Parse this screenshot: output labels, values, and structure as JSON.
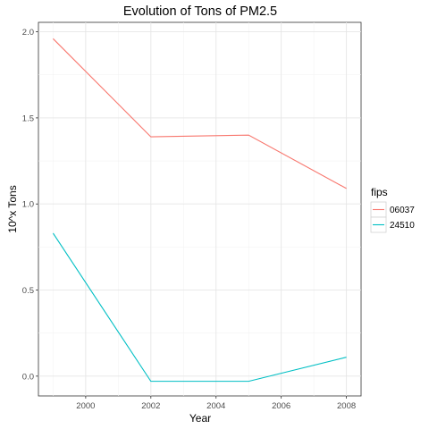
{
  "chart_data": {
    "type": "line",
    "title": "Evolution of Tons of PM2.5",
    "xlabel": "Year",
    "ylabel": "10^x Tons",
    "xlim": [
      1998.55,
      2008.45
    ],
    "ylim": [
      -0.115,
      2.055
    ],
    "x_ticks": [
      2000,
      2002,
      2004,
      2006,
      2008
    ],
    "x_tick_labels": [
      "2000",
      "2002",
      "2004",
      "2006",
      "2008"
    ],
    "y_ticks": [
      0.0,
      0.5,
      1.0,
      1.5,
      2.0
    ],
    "y_tick_labels": [
      "0.0",
      "0.5",
      "1.0",
      "1.5",
      "2.0"
    ],
    "grid": true,
    "legend": {
      "title": "fips",
      "position": "right"
    },
    "series": [
      {
        "name": "06037",
        "color": "#F8766D",
        "x": [
          1999,
          2002,
          2005,
          2008
        ],
        "y": [
          1.96,
          1.39,
          1.4,
          1.09
        ]
      },
      {
        "name": "24510",
        "color": "#00BFC4",
        "x": [
          1999,
          2002,
          2005,
          2008
        ],
        "y": [
          0.83,
          -0.03,
          -0.03,
          0.11
        ]
      }
    ]
  }
}
